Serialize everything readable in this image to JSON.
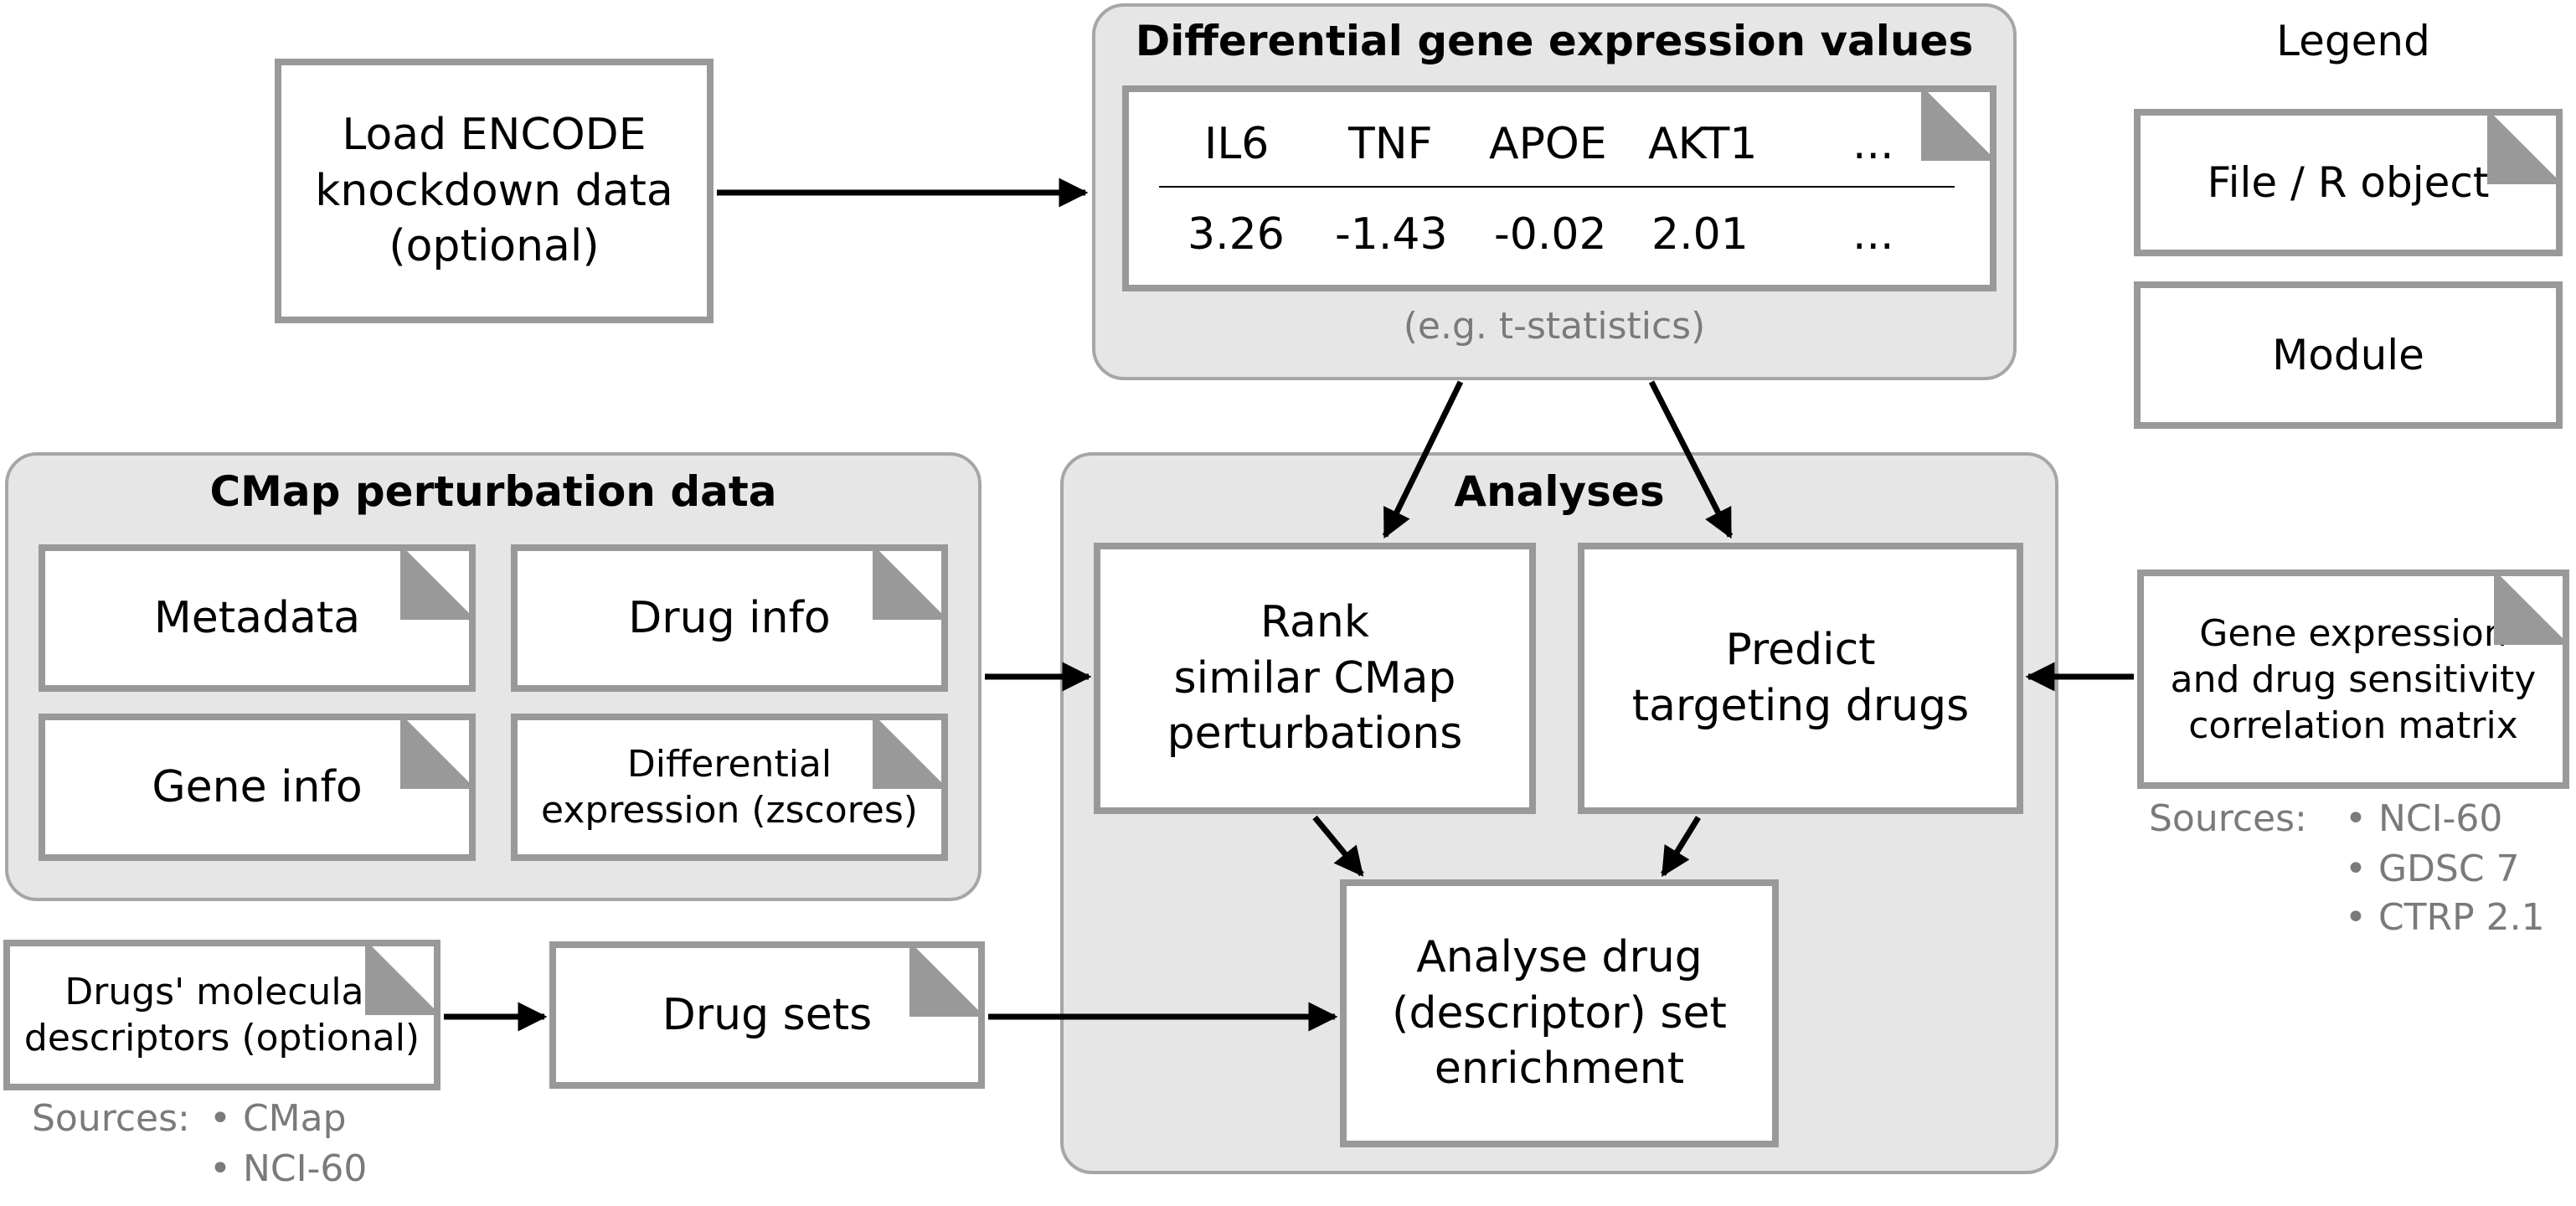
{
  "legend": {
    "title": "Legend",
    "file_label": "File / R object",
    "module_label": "Module"
  },
  "load_encode": {
    "label": "Load ENCODE\nknockdown data\n(optional)"
  },
  "dge": {
    "title": "Differential gene expression values",
    "genes": [
      "IL6",
      "TNF",
      "APOE",
      "AKT1",
      "..."
    ],
    "values": [
      "3.26",
      "-1.43",
      "-0.02",
      "2.01",
      "..."
    ],
    "caption": "(e.g. t-statistics)"
  },
  "cmap": {
    "title": "CMap perturbation data",
    "metadata": "Metadata",
    "drug_info": "Drug info",
    "gene_info": "Gene info",
    "diff_expr": "Differential\nexpression (zscores)"
  },
  "analyses": {
    "title": "Analyses",
    "rank": "Rank\nsimilar CMap\nperturbations",
    "predict": "Predict\ntargeting drugs",
    "enrich": "Analyse drug\n(descriptor) set\nenrichment"
  },
  "gene_drug": {
    "label": "Gene expression\nand drug sensitivity\ncorrelation matrix",
    "sources_label": "Sources:",
    "sources": [
      "• NCI-60",
      "• GDSC 7",
      "• CTRP 2.1"
    ]
  },
  "descriptors": {
    "label": "Drugs' molecular\ndescriptors (optional)",
    "sources_label": "Sources:",
    "sources": [
      "• CMap",
      "• NCI-60"
    ]
  },
  "drug_sets": {
    "label": "Drug sets"
  },
  "colors": {
    "group_bg": "#e6e6e6",
    "group_border": "#a6a6a6",
    "box_border": "#999999",
    "fold": "#999999",
    "caption_text": "#7a7a7a",
    "arrow": "#000000"
  }
}
